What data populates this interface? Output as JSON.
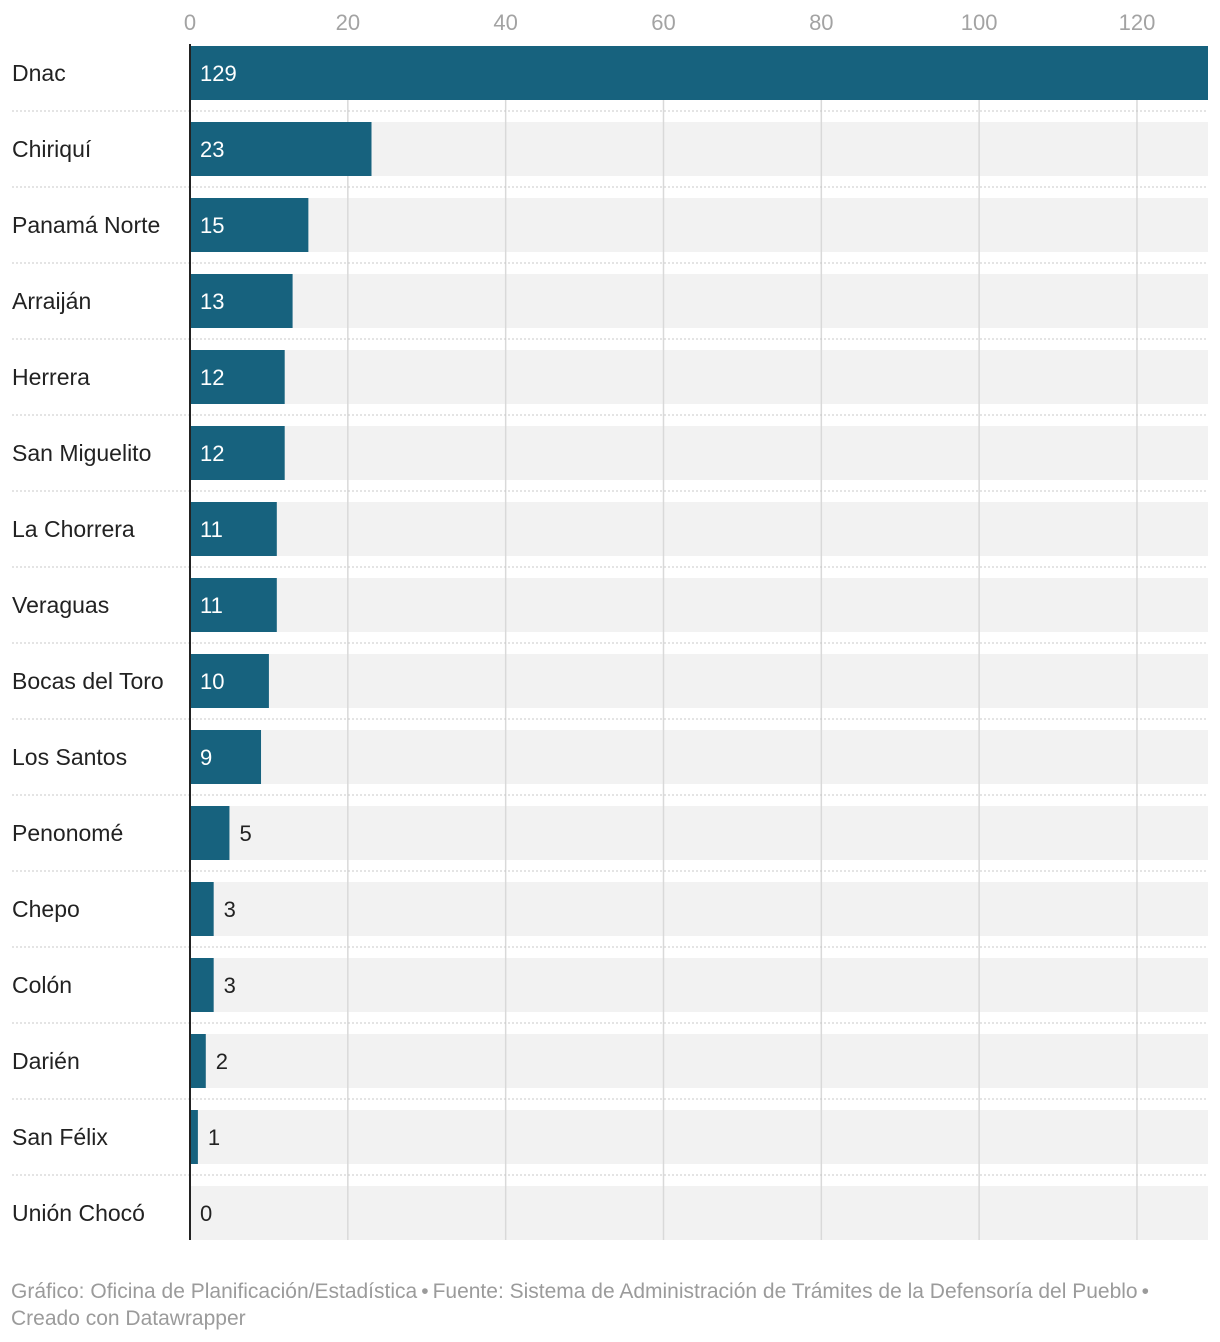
{
  "chart_data": {
    "type": "bar",
    "orientation": "horizontal",
    "categories": [
      "Dnac",
      "Chiriquí",
      "Panamá Norte",
      "Arraiján",
      "Herrera",
      "San Miguelito",
      "La Chorrera",
      "Veraguas",
      "Bocas del Toro",
      "Los Santos",
      "Penonomé",
      "Chepo",
      "Colón",
      "Darién",
      "San Félix",
      "Unión Chocó"
    ],
    "values": [
      129,
      23,
      15,
      13,
      12,
      12,
      11,
      11,
      10,
      9,
      5,
      3,
      3,
      2,
      1,
      0
    ],
    "xlim": [
      0,
      129
    ],
    "xticks": [
      0,
      20,
      40,
      60,
      80,
      100,
      120
    ],
    "xtick_position": "top",
    "grid": true,
    "title": "",
    "xlabel": "",
    "ylabel": ""
  },
  "colors": {
    "bar": "#17627e",
    "track": "#f2f2f2",
    "grid": "#d9d9d9",
    "axis_text": "#a3a3a3",
    "label_text": "#222222",
    "value_inside": "#ffffff",
    "value_outside": "#222222"
  },
  "footer": {
    "chart_credit": "Gráfico: Oficina de Planificación/Estadística",
    "source": "Fuente: Sistema de Administración de Trámites de la Defensoría del Pueblo",
    "created_with": "Creado con Datawrapper",
    "separator": "•"
  }
}
